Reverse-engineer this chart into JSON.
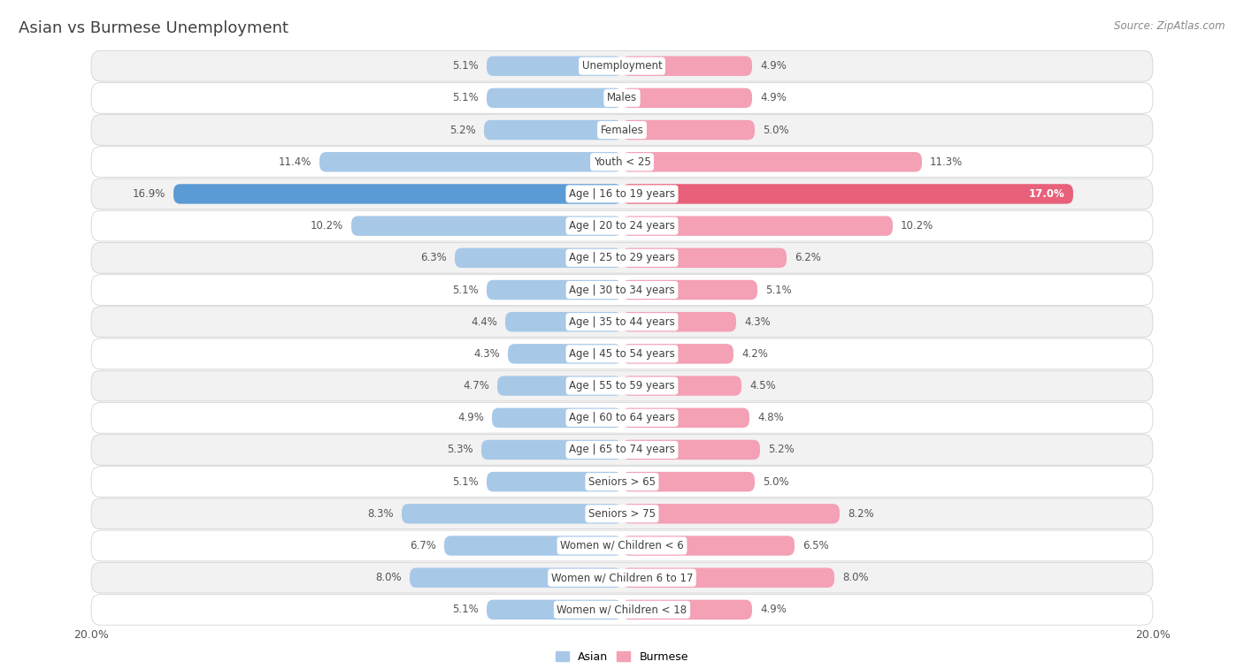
{
  "title": "Asian vs Burmese Unemployment",
  "source": "Source: ZipAtlas.com",
  "categories": [
    "Unemployment",
    "Males",
    "Females",
    "Youth < 25",
    "Age | 16 to 19 years",
    "Age | 20 to 24 years",
    "Age | 25 to 29 years",
    "Age | 30 to 34 years",
    "Age | 35 to 44 years",
    "Age | 45 to 54 years",
    "Age | 55 to 59 years",
    "Age | 60 to 64 years",
    "Age | 65 to 74 years",
    "Seniors > 65",
    "Seniors > 75",
    "Women w/ Children < 6",
    "Women w/ Children 6 to 17",
    "Women w/ Children < 18"
  ],
  "asian_values": [
    5.1,
    5.1,
    5.2,
    11.4,
    16.9,
    10.2,
    6.3,
    5.1,
    4.4,
    4.3,
    4.7,
    4.9,
    5.3,
    5.1,
    8.3,
    6.7,
    8.0,
    5.1
  ],
  "burmese_values": [
    4.9,
    4.9,
    5.0,
    11.3,
    17.0,
    10.2,
    6.2,
    5.1,
    4.3,
    4.2,
    4.5,
    4.8,
    5.2,
    5.0,
    8.2,
    6.5,
    8.0,
    4.9
  ],
  "asian_color": "#A8C8E8",
  "burmese_color": "#F4A0B5",
  "asian_highlight_color": "#5B9BD5",
  "burmese_highlight_color": "#E8607A",
  "max_val": 20.0,
  "background_color": "#FFFFFF",
  "row_color_odd": "#F2F2F2",
  "row_color_even": "#FFFFFF",
  "label_bg_color": "#FFFFFF",
  "title_color": "#404040",
  "value_color": "#555555",
  "label_color": "#404040"
}
